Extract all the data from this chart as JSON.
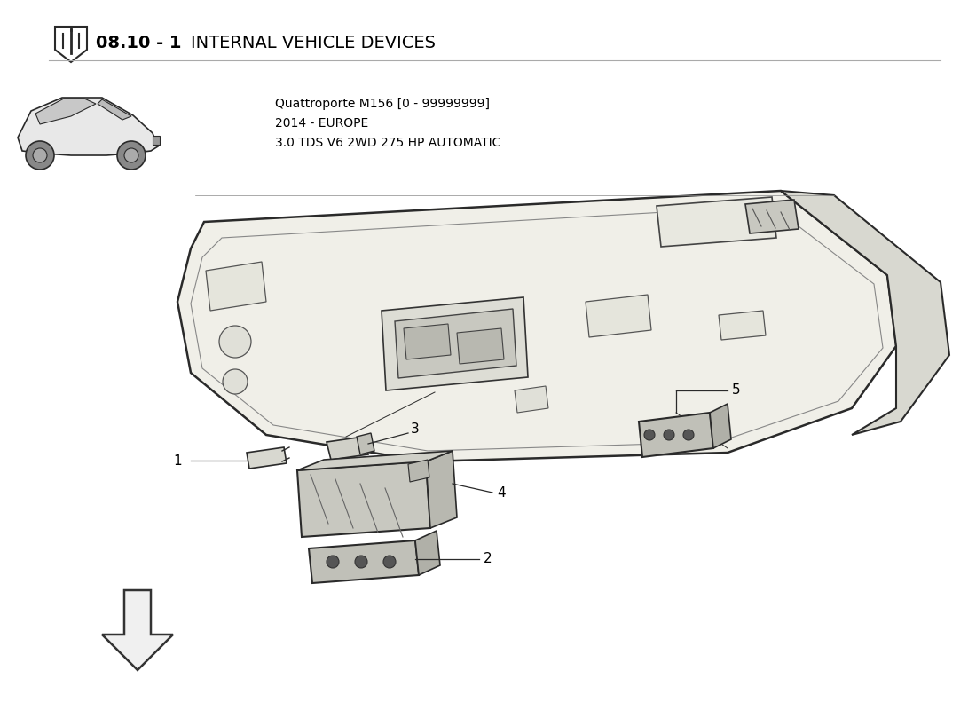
{
  "title_bold": "08.10 - 1",
  "title_normal": " INTERNAL VEHICLE DEVICES",
  "subtitle_line1": "Quattroporte M156 [0 - 99999999]",
  "subtitle_line2": "2014 - EUROPE",
  "subtitle_line3": "3.0 TDS V6 2WD 275 HP AUTOMATIC",
  "bg_color": "#ffffff",
  "text_color": "#000000",
  "line_color": "#2a2a2a",
  "panel_face": "#f0efe8",
  "panel_edge": "#2a2a2a",
  "part_face": "#d8d8d0",
  "part_edge": "#2a2a2a",
  "figsize": [
    11.0,
    8.0
  ],
  "dpi": 100
}
